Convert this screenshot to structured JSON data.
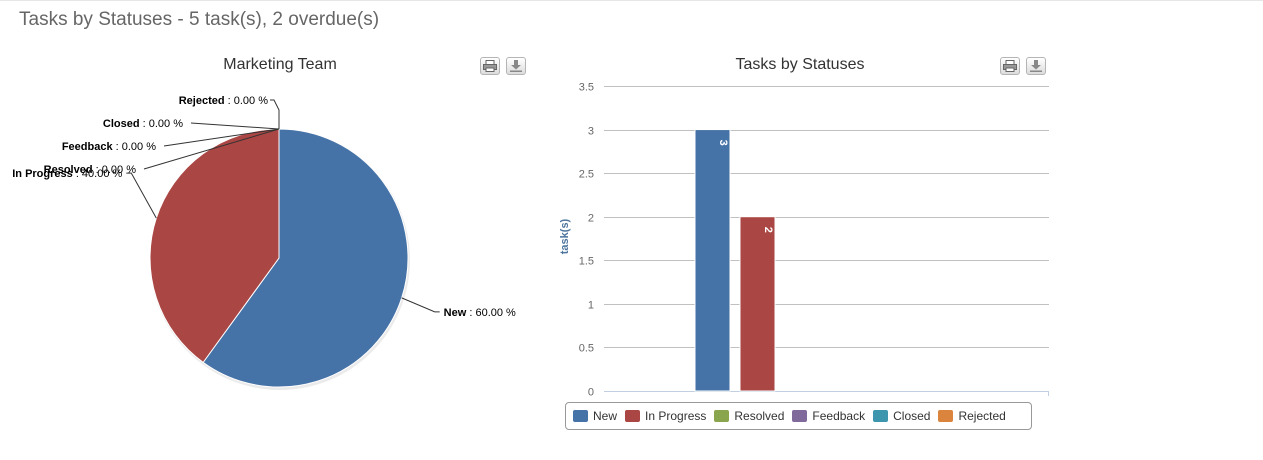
{
  "header": {
    "title": "Tasks by Statuses - 5 task(s), 2 overdue(s)"
  },
  "colors": {
    "New": "#4572A7",
    "In Progress": "#AA4643",
    "Resolved": "#89A54E",
    "Feedback": "#80699B",
    "Closed": "#3D96AE",
    "Rejected": "#DB843D"
  },
  "icons": {
    "print": "printer-icon",
    "download": "download-icon"
  },
  "chart_data": [
    {
      "type": "pie",
      "title": "Marketing Team",
      "slices": [
        {
          "name": "New",
          "value": 60.0,
          "label": "60.00 %"
        },
        {
          "name": "In Progress",
          "value": 40.0,
          "label": "40.00 %"
        },
        {
          "name": "Resolved",
          "value": 0.0,
          "label": "0.00 %"
        },
        {
          "name": "Feedback",
          "value": 0.0,
          "label": "0.00 %"
        },
        {
          "name": "Closed",
          "value": 0.0,
          "label": "0.00 %"
        },
        {
          "name": "Rejected",
          "value": 0.0,
          "label": "0.00 %"
        }
      ]
    },
    {
      "type": "bar",
      "title": "Tasks by Statuses",
      "xlabel": "",
      "ylabel": "task(s)",
      "ylim": [
        0,
        3.5
      ],
      "yticks": [
        "0",
        "0.5",
        "1",
        "1.5",
        "2",
        "2.5",
        "3",
        "3.5"
      ],
      "categories": [
        ""
      ],
      "series": [
        {
          "name": "New",
          "values": [
            3
          ],
          "data_label": "3"
        },
        {
          "name": "In Progress",
          "values": [
            2
          ],
          "data_label": "2"
        },
        {
          "name": "Resolved",
          "values": [
            0
          ]
        },
        {
          "name": "Feedback",
          "values": [
            0
          ]
        },
        {
          "name": "Closed",
          "values": [
            0
          ]
        },
        {
          "name": "Rejected",
          "values": [
            0
          ]
        }
      ],
      "grid": true,
      "legend": "bottom"
    }
  ]
}
